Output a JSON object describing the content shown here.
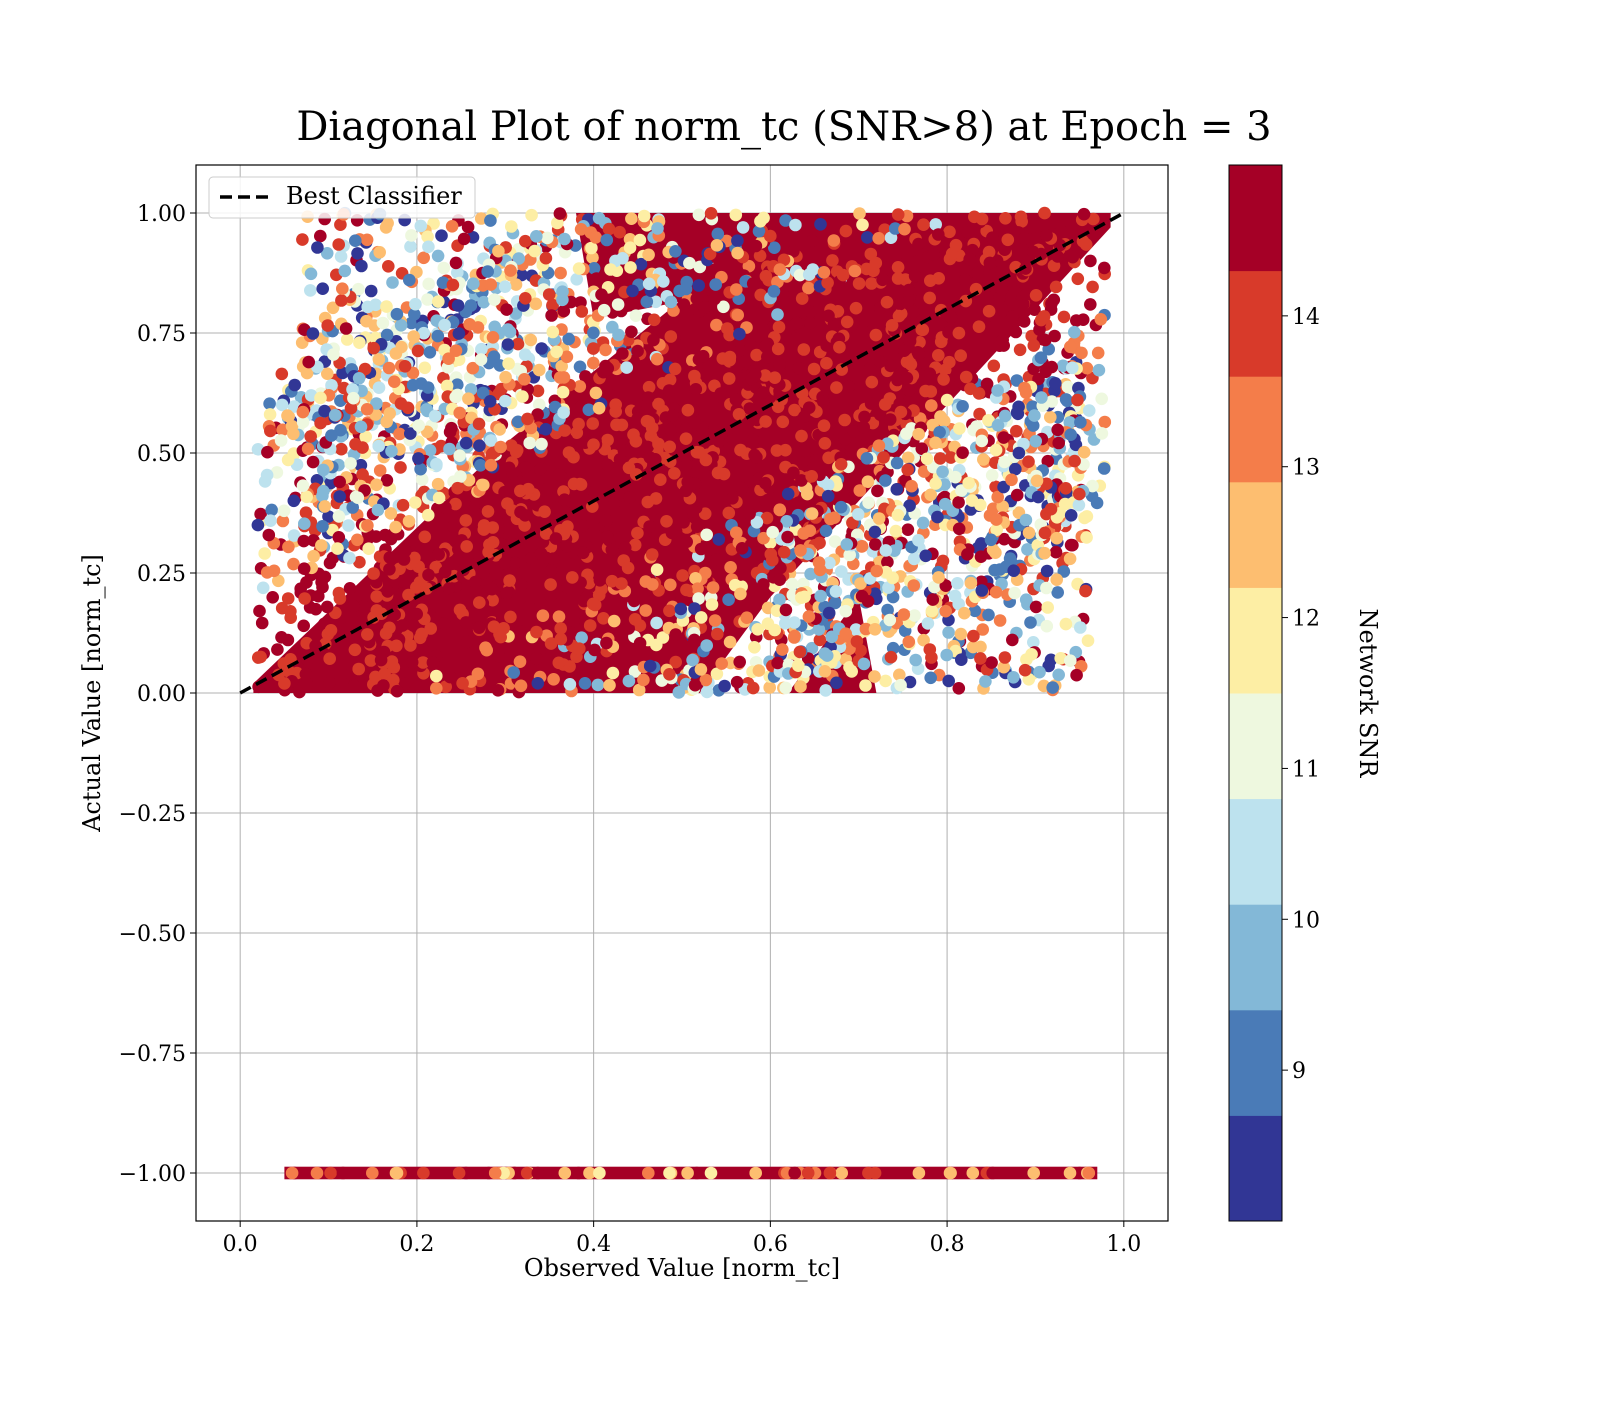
{
  "chart_data": {
    "type": "scatter",
    "title": "Diagonal Plot of norm_tc (SNR>8) at Epoch = 3",
    "xlabel": "Observed Value [norm_tc]",
    "ylabel": "Actual Value [norm_tc]",
    "xlim": [
      -0.05,
      1.05
    ],
    "ylim": [
      -1.1,
      1.1
    ],
    "xticks": [
      0.0,
      0.2,
      0.4,
      0.6,
      0.8,
      1.0
    ],
    "xtick_labels": [
      "0.0",
      "0.2",
      "0.4",
      "0.6",
      "0.8",
      "1.0"
    ],
    "yticks": [
      1.0,
      0.75,
      0.5,
      0.25,
      0.0,
      -0.25,
      -0.5,
      -0.75,
      -1.0
    ],
    "ytick_labels": [
      "1.00",
      "0.75",
      "0.50",
      "0.25",
      "0.00",
      "−0.25",
      "−0.50",
      "−0.75",
      "−1.00"
    ],
    "grid": true,
    "legend": {
      "location": "upper-left",
      "entries": [
        {
          "label": "Best Classifier",
          "style": "dashed",
          "color": "#000000"
        }
      ]
    },
    "reference_line": {
      "name": "Best Classifier",
      "x": [
        0.0,
        1.0
      ],
      "y": [
        0.0,
        1.0
      ]
    },
    "colorbar": {
      "label": "Network SNR",
      "range": [
        8.0,
        15.0
      ],
      "ticks": [
        9,
        10,
        11,
        12,
        13,
        14
      ],
      "tick_labels": [
        "9",
        "10",
        "11",
        "12",
        "13",
        "14"
      ],
      "colors": [
        "#313695",
        "#4a7bb7",
        "#83b8d7",
        "#bde2ee",
        "#eef8df",
        "#fdeea4",
        "#fdbe70",
        "#f47d4a",
        "#d83a2a",
        "#a50026"
      ]
    },
    "series": [
      {
        "kind": "scatter-cloud",
        "description_region": "diagonal band, upper points y in [0,1]",
        "x_range": [
          0.015,
          0.985
        ],
        "y_range": [
          0.0,
          1.0
        ],
        "dominant_color_value": 14.5
      },
      {
        "kind": "scatter-row",
        "x_range": [
          0.045,
          0.975
        ],
        "y": -1.0,
        "dominant_color_value": 14.5
      }
    ]
  }
}
